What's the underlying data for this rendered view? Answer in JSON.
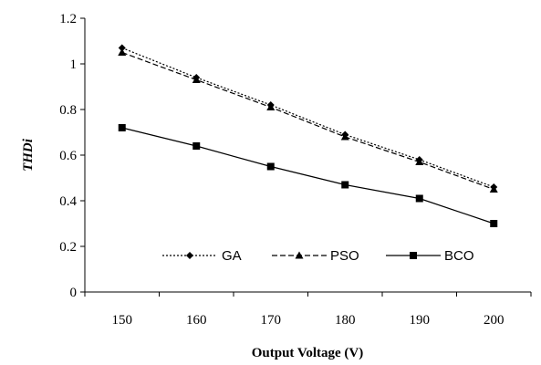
{
  "chart_data": {
    "type": "line",
    "xlabel": "Output Voltage (V)",
    "ylabel": "THDi",
    "x": [
      150,
      160,
      170,
      180,
      190,
      200
    ],
    "xlim": [
      145,
      205
    ],
    "ylim": [
      0,
      1.2
    ],
    "y_ticks": [
      "0",
      "0.2",
      "0.4",
      "0.6",
      "0.8",
      "1",
      "1.2"
    ],
    "x_ticks": [
      "150",
      "160",
      "170",
      "180",
      "190",
      "200"
    ],
    "grid": false,
    "legend_placement": "bottom",
    "series": [
      {
        "name": "GA",
        "marker": "diamond",
        "dash": "dotted",
        "values": [
          1.07,
          0.94,
          0.82,
          0.69,
          0.58,
          0.46
        ]
      },
      {
        "name": "PSO",
        "marker": "triangle",
        "dash": "dashed",
        "values": [
          1.05,
          0.93,
          0.81,
          0.68,
          0.57,
          0.45
        ]
      },
      {
        "name": "BCO",
        "marker": "square",
        "dash": "solid",
        "values": [
          0.72,
          0.64,
          0.55,
          0.47,
          0.41,
          0.3
        ]
      }
    ]
  }
}
